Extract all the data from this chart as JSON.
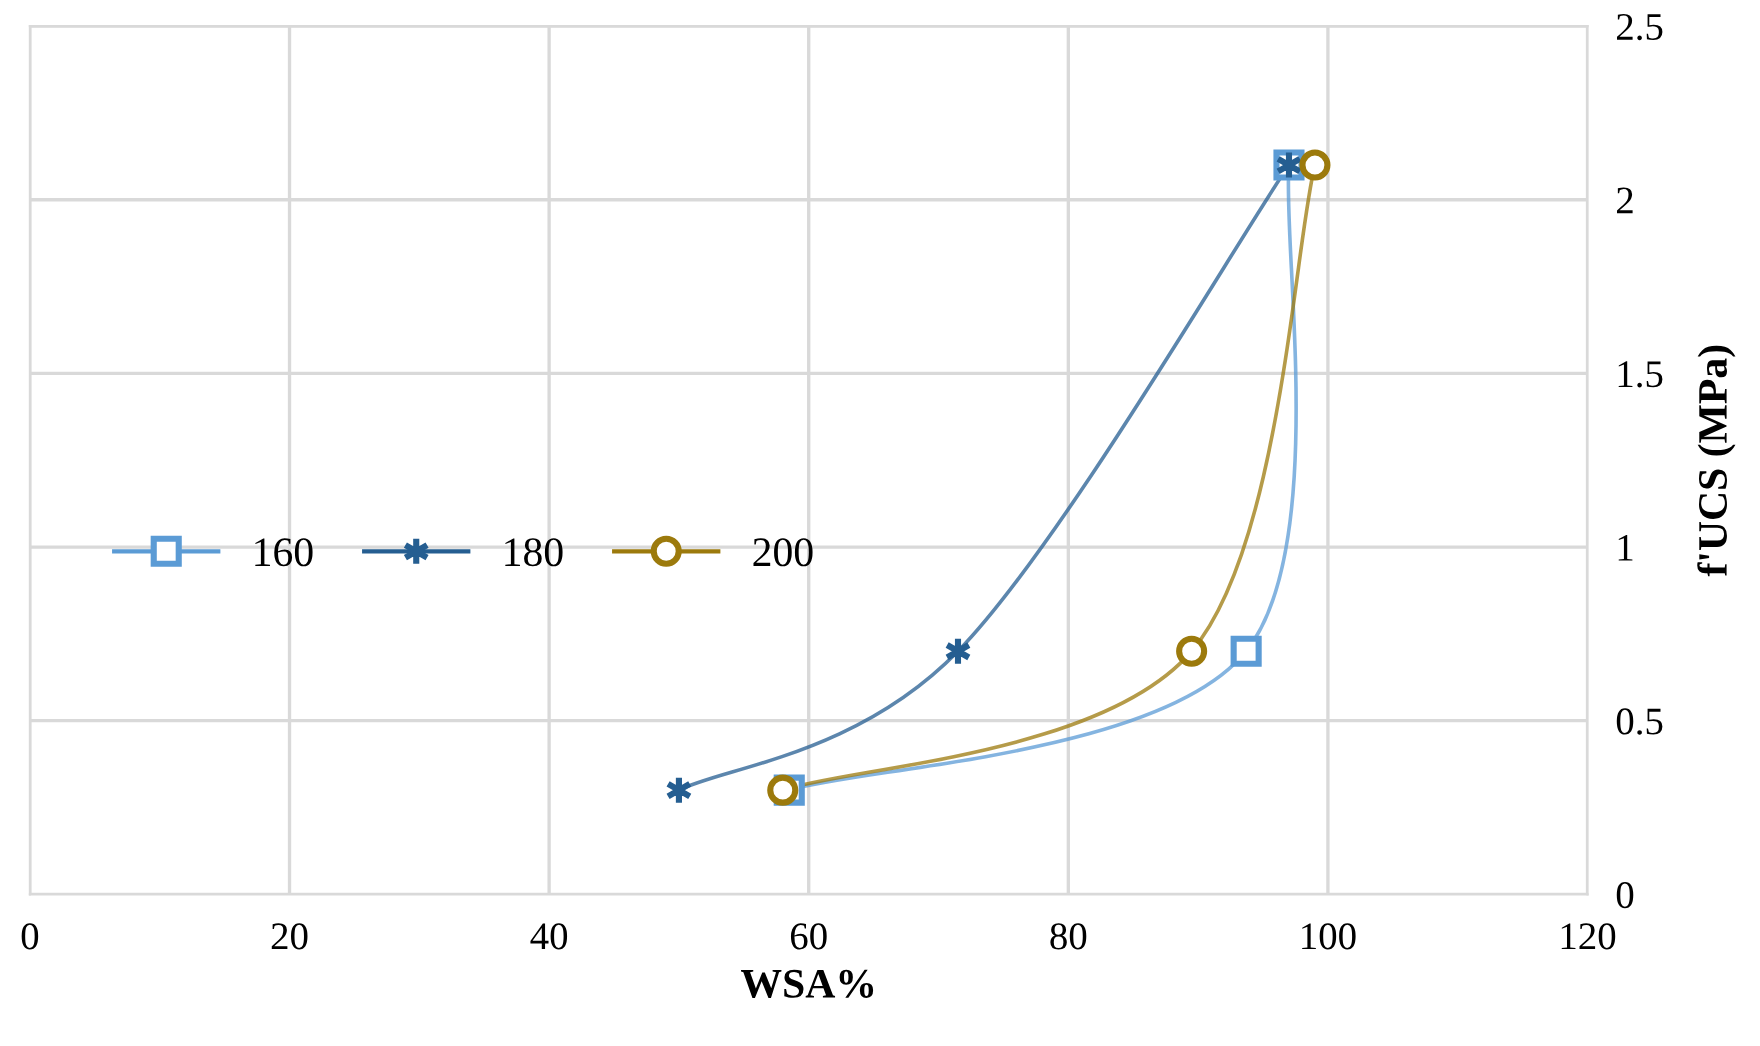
{
  "chart_data": {
    "type": "line",
    "xlabel": "WSA%",
    "ylabel": "f'UCS (MPa)",
    "xlim": [
      0,
      120
    ],
    "xticks": [
      0,
      20,
      40,
      60,
      80,
      100,
      120
    ],
    "ylim": [
      0,
      2.5
    ],
    "yticks": [
      0,
      0.5,
      1,
      1.5,
      2,
      2.5
    ],
    "grid": true,
    "legend": "left",
    "line_style": "solid",
    "series": [
      {
        "name": "160",
        "color": "#5b9bd5",
        "marker": "square",
        "x": [
          58.5,
          93.7,
          97
        ],
        "values": [
          0.3,
          0.7,
          2.1
        ]
      },
      {
        "name": "180",
        "color": "#255e91",
        "marker": "cross",
        "x": [
          50,
          71.5,
          97
        ],
        "values": [
          0.3,
          0.7,
          2.1
        ]
      },
      {
        "name": "200",
        "color": "#9c7a0c",
        "marker": "circle",
        "x": [
          58,
          89.5,
          99
        ],
        "values": [
          0.3,
          0.7,
          2.1
        ]
      }
    ]
  }
}
